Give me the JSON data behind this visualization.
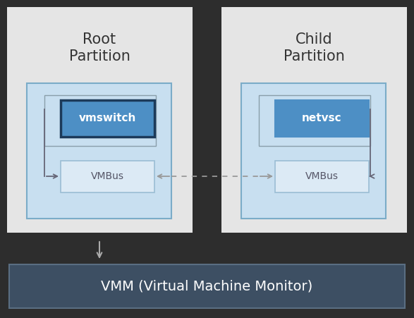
{
  "fig_bg": "#2d2d2d",
  "outer_bg": "#e5e5e5",
  "outer_border": "#cccccc",
  "inner_fill": "#c8dff0",
  "inner_border": "#7bacc8",
  "vmswitch_fill": "#4d8fc5",
  "vmswitch_border": "#1c3a5a",
  "netvsc_fill": "#4d8fc5",
  "netvsc_border": "#4d8fc5",
  "vmbus_fill": "#dceaf5",
  "vmbus_border": "#9bbdd4",
  "loop_border": "#8a9eaa",
  "vmm_fill": "#3d4f63",
  "vmm_border": "#5a6e82",
  "title_color": "#333333",
  "vmswitch_text_color": "#ffffff",
  "netvsc_text_color": "#ffffff",
  "vmbus_text_color": "#555566",
  "vmm_text_color": "#ffffff",
  "arrow_color": "#666677",
  "dotted_color": "#999999",
  "vmm_down_arrow_color": "#aaaaaa",
  "root_title": "Root\nPartition",
  "child_title": "Child\nPartition",
  "vmswitch_label": "vmswitch",
  "netvsc_label": "netvsc",
  "vmbus_label": "VMBus",
  "vmm_label": "VMM (Virtual Machine Monitor)"
}
